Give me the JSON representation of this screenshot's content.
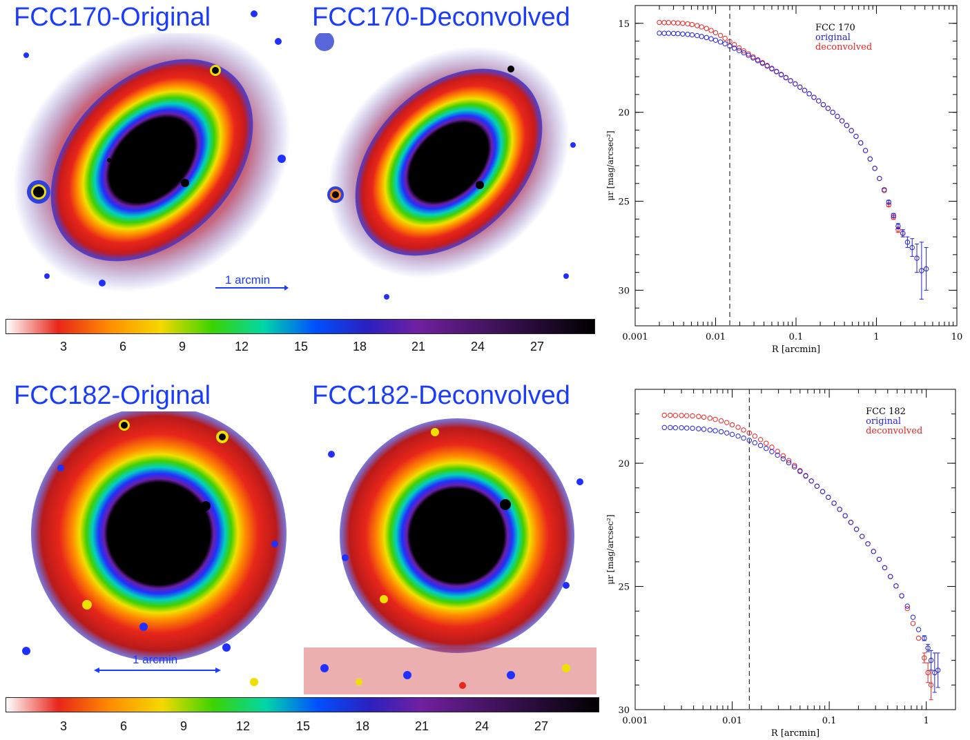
{
  "panels": {
    "fcc170_original": "FCC170-Original",
    "fcc170_deconvolved": "FCC170-Deconvolved",
    "fcc182_original": "FCC182-Original",
    "fcc182_deconvolved": "FCC182-Deconvolved",
    "scale_bar_label": "1 arcmin"
  },
  "colorbar": {
    "ticks": [
      "3",
      "6",
      "9",
      "12",
      "15",
      "18",
      "21",
      "24",
      "27"
    ],
    "stops": [
      "#ffffff",
      "#e8261a",
      "#ff8c00",
      "#f5d800",
      "#3ad400",
      "#00d6a8",
      "#0050ff",
      "#2a20c0",
      "#7020a0",
      "#000000"
    ]
  },
  "colors": {
    "original": "#2222dd",
    "deconvolved": "#ee2222",
    "label_blue": "#1a3cff"
  },
  "chart_data": [
    {
      "type": "scatter",
      "title": "",
      "xlabel": "R [arcmin]",
      "ylabel": "μr [mag/arcsec²]",
      "xscale": "log",
      "xlim": [
        0.001,
        10
      ],
      "ylim": [
        32,
        14
      ],
      "xticks": [
        "0.001",
        "0.01",
        "0.1",
        "1",
        "10"
      ],
      "yticks": [
        "15",
        "20",
        "25",
        "30"
      ],
      "vline_x": 0.015,
      "legend": [
        "FCC 170",
        "original",
        "deconvolved"
      ],
      "series": [
        {
          "name": "original",
          "x": [
            0.002,
            0.0023,
            0.0026,
            0.003,
            0.0034,
            0.0039,
            0.0045,
            0.0051,
            0.0059,
            0.0067,
            0.0077,
            0.0088,
            0.01,
            0.0115,
            0.0131,
            0.015,
            0.0171,
            0.0196,
            0.0224,
            0.0256,
            0.0293,
            0.0335,
            0.0383,
            0.0438,
            0.05,
            0.0572,
            0.0654,
            0.0748,
            0.0855,
            0.0978,
            0.112,
            0.128,
            0.146,
            0.167,
            0.191,
            0.218,
            0.25,
            0.286,
            0.327,
            0.373,
            0.427,
            0.488,
            0.558,
            0.638,
            0.73,
            0.834,
            0.954,
            1.09,
            1.25,
            1.42,
            1.63,
            1.86,
            2.13,
            2.43,
            2.78,
            3.18,
            3.64,
            4.16
          ],
          "y": [
            15.55,
            15.56,
            15.56,
            15.57,
            15.58,
            15.6,
            15.62,
            15.65,
            15.69,
            15.74,
            15.8,
            15.87,
            15.95,
            16.05,
            16.15,
            16.28,
            16.4,
            16.53,
            16.66,
            16.8,
            16.95,
            17.1,
            17.25,
            17.4,
            17.56,
            17.72,
            17.89,
            18.06,
            18.23,
            18.41,
            18.59,
            18.77,
            18.96,
            19.16,
            19.36,
            19.57,
            19.78,
            20.0,
            20.23,
            20.48,
            20.74,
            21.03,
            21.35,
            21.72,
            22.15,
            22.62,
            23.15,
            23.72,
            24.35,
            25.05,
            25.8,
            26.4,
            26.8,
            27.3,
            27.6,
            28.2,
            28.9,
            28.8
          ],
          "err": [
            0,
            0,
            0,
            0,
            0,
            0,
            0,
            0,
            0,
            0,
            0,
            0,
            0,
            0,
            0,
            0,
            0,
            0,
            0,
            0,
            0,
            0,
            0,
            0,
            0,
            0,
            0,
            0,
            0,
            0,
            0,
            0,
            0,
            0,
            0,
            0,
            0,
            0,
            0,
            0,
            0,
            0,
            0,
            0,
            0,
            0,
            0,
            0,
            0,
            0.1,
            0.12,
            0.15,
            0.2,
            0.3,
            0.5,
            0.8,
            1.6,
            1.2
          ]
        },
        {
          "name": "deconvolved",
          "x": [
            0.002,
            0.0023,
            0.0026,
            0.003,
            0.0034,
            0.0039,
            0.0045,
            0.0051,
            0.0059,
            0.0067,
            0.0077,
            0.0088,
            0.01,
            0.0115,
            0.0131,
            0.015,
            0.0171,
            0.0196,
            0.0224,
            0.0256,
            0.0293,
            0.0335,
            0.0383,
            0.0438,
            0.05,
            0.0572,
            0.0654,
            0.0748,
            0.0855,
            0.0978,
            0.112,
            0.128,
            0.146,
            0.167,
            0.191,
            0.218,
            0.25,
            0.286,
            0.327,
            0.373,
            0.427,
            0.488,
            0.558,
            0.638,
            0.73,
            0.834,
            0.954,
            1.09,
            1.25,
            1.42,
            1.63,
            1.86,
            2.13
          ],
          "y": [
            14.95,
            14.96,
            14.96,
            14.97,
            14.98,
            15.0,
            15.03,
            15.07,
            15.13,
            15.2,
            15.29,
            15.4,
            15.53,
            15.68,
            15.84,
            16.02,
            16.2,
            16.38,
            16.55,
            16.72,
            16.89,
            17.05,
            17.21,
            17.37,
            17.53,
            17.7,
            17.87,
            18.04,
            18.22,
            18.4,
            18.58,
            18.77,
            18.96,
            19.16,
            19.36,
            19.57,
            19.78,
            20.0,
            20.23,
            20.48,
            20.74,
            21.03,
            21.35,
            21.72,
            22.15,
            22.62,
            23.15,
            23.72,
            24.4,
            25.2,
            25.9,
            26.6,
            26.8
          ],
          "err": [
            0,
            0,
            0,
            0,
            0,
            0,
            0,
            0,
            0,
            0,
            0,
            0,
            0,
            0,
            0,
            0,
            0,
            0,
            0,
            0,
            0,
            0,
            0,
            0,
            0,
            0,
            0,
            0,
            0,
            0,
            0,
            0,
            0,
            0,
            0,
            0,
            0,
            0,
            0,
            0,
            0,
            0,
            0,
            0,
            0,
            0,
            0,
            0,
            0,
            0.1,
            0.12,
            0.15,
            0.2
          ]
        }
      ]
    },
    {
      "type": "scatter",
      "title": "",
      "xlabel": "R [arcmin]",
      "ylabel": "μr [mag/arcsec²]",
      "xscale": "log",
      "xlim": [
        0.001,
        2
      ],
      "ylim": [
        30,
        17
      ],
      "xticks": [
        "0.001",
        "0.01",
        "0.1",
        "1"
      ],
      "yticks": [
        "20",
        "25",
        "30"
      ],
      "vline_x": 0.015,
      "legend": [
        "FCC 182",
        "original",
        "deconvolved"
      ],
      "series": [
        {
          "name": "original",
          "x": [
            0.002,
            0.0023,
            0.0026,
            0.003,
            0.0034,
            0.0039,
            0.0045,
            0.0051,
            0.0059,
            0.0067,
            0.0077,
            0.0088,
            0.01,
            0.0115,
            0.0131,
            0.015,
            0.0171,
            0.0196,
            0.0224,
            0.0256,
            0.0293,
            0.0335,
            0.0383,
            0.0438,
            0.05,
            0.0572,
            0.0654,
            0.0748,
            0.0855,
            0.0978,
            0.112,
            0.128,
            0.146,
            0.167,
            0.191,
            0.218,
            0.25,
            0.286,
            0.327,
            0.373,
            0.427,
            0.488,
            0.558,
            0.638,
            0.73,
            0.834,
            0.954,
            1.04,
            1.12,
            1.22,
            1.32
          ],
          "y": [
            18.55,
            18.55,
            18.56,
            18.56,
            18.57,
            18.58,
            18.6,
            18.62,
            18.65,
            18.68,
            18.72,
            18.77,
            18.83,
            18.9,
            18.98,
            19.07,
            19.17,
            19.28,
            19.4,
            19.53,
            19.67,
            19.82,
            19.98,
            20.15,
            20.33,
            20.52,
            20.72,
            20.93,
            21.15,
            21.38,
            21.62,
            21.87,
            22.13,
            22.4,
            22.68,
            22.97,
            23.27,
            23.58,
            23.9,
            24.24,
            24.6,
            24.98,
            25.38,
            25.8,
            26.25,
            26.75,
            27.1,
            27.5,
            28.0,
            28.5,
            28.4
          ],
          "err": [
            0,
            0,
            0,
            0,
            0,
            0,
            0,
            0,
            0,
            0,
            0,
            0,
            0,
            0,
            0,
            0,
            0,
            0,
            0,
            0,
            0,
            0,
            0,
            0,
            0,
            0,
            0,
            0,
            0,
            0,
            0,
            0,
            0,
            0,
            0,
            0,
            0,
            0,
            0,
            0,
            0,
            0,
            0,
            0,
            0,
            0,
            0.1,
            0.15,
            0.4,
            0.8,
            0.7
          ]
        },
        {
          "name": "deconvolved",
          "x": [
            0.002,
            0.0023,
            0.0026,
            0.003,
            0.0034,
            0.0039,
            0.0045,
            0.0051,
            0.0059,
            0.0067,
            0.0077,
            0.0088,
            0.01,
            0.0115,
            0.0131,
            0.015,
            0.0171,
            0.0196,
            0.0224,
            0.0256,
            0.0293,
            0.0335,
            0.0383,
            0.0438,
            0.05,
            0.0572,
            0.0654,
            0.0748,
            0.0855,
            0.0978,
            0.112,
            0.128,
            0.146,
            0.167,
            0.191,
            0.218,
            0.25,
            0.286,
            0.327,
            0.373,
            0.427,
            0.488,
            0.558,
            0.638,
            0.73,
            0.834,
            0.954,
            1.04,
            1.12
          ],
          "y": [
            18.05,
            18.05,
            18.06,
            18.06,
            18.07,
            18.08,
            18.1,
            18.13,
            18.17,
            18.22,
            18.28,
            18.35,
            18.44,
            18.54,
            18.65,
            18.77,
            18.9,
            19.04,
            19.19,
            19.35,
            19.52,
            19.7,
            19.89,
            20.09,
            20.3,
            20.5,
            20.72,
            20.93,
            21.15,
            21.38,
            21.62,
            21.87,
            22.13,
            22.4,
            22.68,
            22.97,
            23.27,
            23.58,
            23.9,
            24.24,
            24.6,
            24.98,
            25.38,
            25.9,
            26.5,
            27.1,
            27.9,
            28.5,
            29.0
          ],
          "err": [
            0,
            0,
            0,
            0,
            0,
            0,
            0,
            0,
            0,
            0,
            0,
            0,
            0,
            0,
            0,
            0,
            0,
            0,
            0,
            0,
            0,
            0,
            0,
            0,
            0,
            0,
            0,
            0,
            0,
            0,
            0,
            0,
            0,
            0,
            0,
            0,
            0,
            0,
            0,
            0,
            0,
            0,
            0,
            0,
            0,
            0,
            0.2,
            0.4,
            0.6
          ]
        }
      ]
    }
  ]
}
